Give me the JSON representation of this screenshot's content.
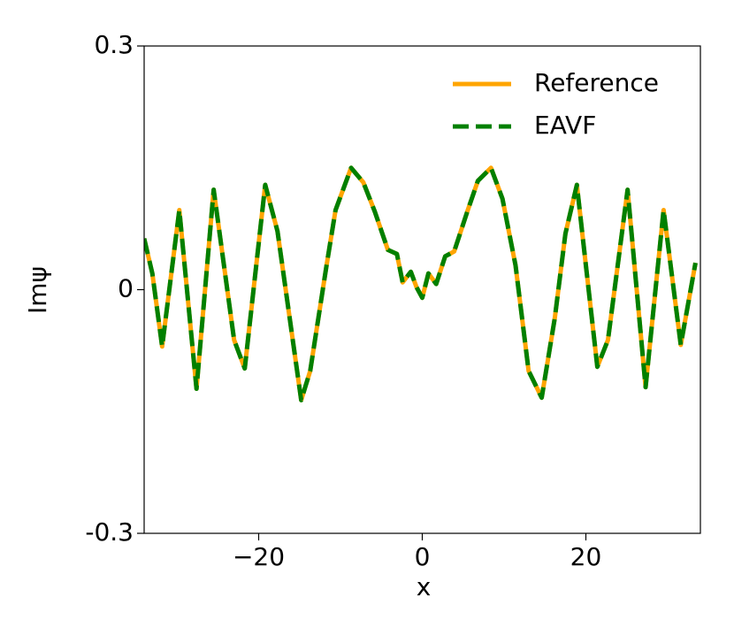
{
  "chart_data": {
    "type": "line",
    "x": [
      -34,
      -33,
      -31.8,
      -29.7,
      -27.6,
      -25.5,
      -23,
      -21.7,
      -19.2,
      -17.7,
      -14.8,
      -13.7,
      -11.7,
      -10.6,
      -8.7,
      -7.2,
      -5.8,
      -4.2,
      -3.1,
      -2.4,
      -1.4,
      -0.7,
      0,
      0.75,
      1.7,
      2.8,
      3.9,
      5.5,
      6.8,
      8.4,
      9.8,
      11.4,
      13,
      14.6,
      16.2,
      17.5,
      18.9,
      20,
      21.4,
      22.7,
      25.1,
      27.3,
      29.5,
      31.6,
      33.4
    ],
    "series": [
      {
        "name": "Reference",
        "color": "#ffa500",
        "values": [
          0.063,
          0.02,
          -0.07,
          0.098,
          -0.122,
          0.123,
          -0.062,
          -0.097,
          0.129,
          0.072,
          -0.136,
          -0.1,
          0.03,
          0.098,
          0.15,
          0.132,
          0.096,
          0.049,
          0.044,
          0.009,
          0.022,
          0.003,
          -0.01,
          0.02,
          0.007,
          0.041,
          0.047,
          0.096,
          0.134,
          0.15,
          0.112,
          0.03,
          -0.1,
          -0.133,
          -0.035,
          0.069,
          0.129,
          0.03,
          -0.095,
          -0.062,
          0.123,
          -0.12,
          0.098,
          -0.068,
          0.033
        ]
      },
      {
        "name": "EAVF",
        "color": "#008000",
        "values": [
          0.063,
          0.02,
          -0.07,
          0.098,
          -0.122,
          0.123,
          -0.062,
          -0.097,
          0.129,
          0.072,
          -0.136,
          -0.1,
          0.03,
          0.098,
          0.15,
          0.132,
          0.096,
          0.049,
          0.044,
          0.009,
          0.022,
          0.003,
          -0.01,
          0.02,
          0.007,
          0.041,
          0.047,
          0.096,
          0.134,
          0.15,
          0.112,
          0.03,
          -0.1,
          -0.133,
          -0.035,
          0.069,
          0.129,
          0.03,
          -0.095,
          -0.062,
          0.123,
          -0.12,
          0.098,
          -0.068,
          0.033
        ]
      }
    ],
    "x_label": "x",
    "y_label": "Imψ",
    "xlim": [
      -34,
      34
    ],
    "ylim": [
      -0.3,
      0.3
    ],
    "xticks": [
      {
        "value": -20,
        "label": "−20"
      },
      0,
      20
    ],
    "yticks": [
      0.3,
      0,
      -0.3
    ],
    "legend": "upper right"
  }
}
